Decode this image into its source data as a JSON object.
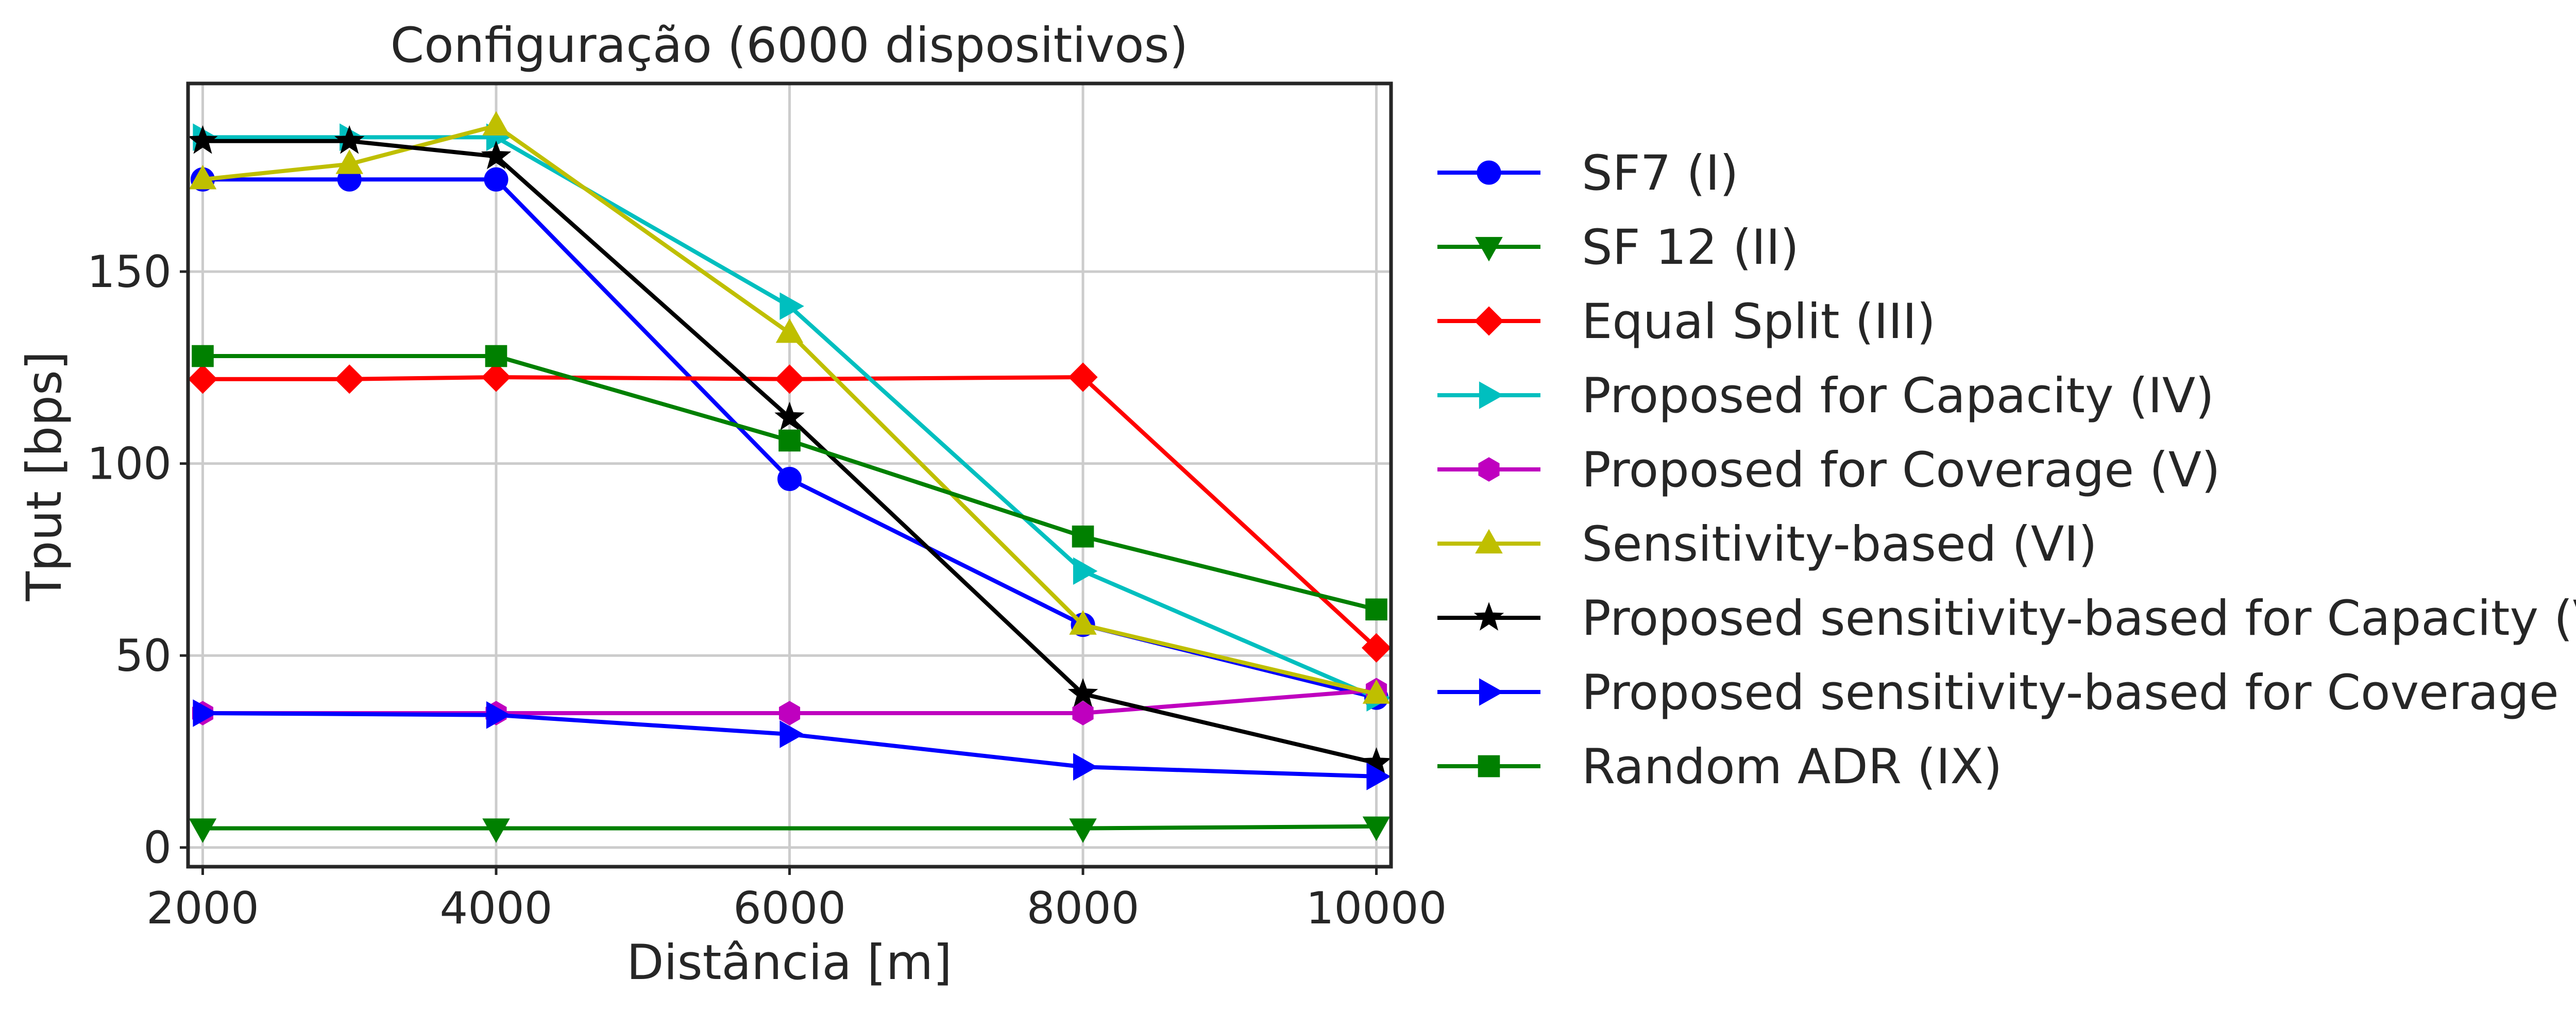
{
  "chart_data": {
    "type": "line",
    "title": "Configuração (6000 dispositivos)",
    "xlabel": "Distância [m]",
    "ylabel": "Tput [bps]",
    "xlim": [
      1900,
      10100
    ],
    "ylim": [
      -5,
      199
    ],
    "x_ticks": [
      2000,
      4000,
      6000,
      8000,
      10000
    ],
    "y_ticks": [
      0,
      50,
      100,
      150
    ],
    "x_tick_labels": [
      "2000",
      "4000",
      "6000",
      "8000",
      "10000"
    ],
    "y_tick_labels": [
      "0",
      "50",
      "100",
      "150"
    ],
    "grid": true,
    "legend_position": "outside-right",
    "series": [
      {
        "name": "SF7 (I)",
        "color": "#0000ff",
        "marker": "circle",
        "x": [
          2000,
          3000,
          4000,
          6000,
          8000,
          10000
        ],
        "y": [
          174,
          174,
          174,
          96,
          58,
          39
        ]
      },
      {
        "name": "SF 12 (II)",
        "color": "#008000",
        "marker": "triangle-down",
        "x": [
          2000,
          4000,
          8000,
          10000
        ],
        "y": [
          5,
          5,
          5,
          5.5
        ]
      },
      {
        "name": "Equal Split (III)",
        "color": "#ff0000",
        "marker": "diamond",
        "x": [
          2000,
          3000,
          4000,
          6000,
          8000,
          10000
        ],
        "y": [
          122,
          122,
          122.5,
          122,
          122.5,
          52
        ]
      },
      {
        "name": "Proposed for Capacity (IV)",
        "color": "#00bfbf",
        "marker": "triangle-right",
        "x": [
          2000,
          3000,
          4000,
          6000,
          8000,
          10000
        ],
        "y": [
          185,
          185,
          185,
          141,
          72,
          39
        ]
      },
      {
        "name": "Proposed for Coverage (V)",
        "color": "#bf00bf",
        "marker": "hexagon",
        "x": [
          2000,
          4000,
          6000,
          8000,
          10000
        ],
        "y": [
          35,
          35,
          35,
          35,
          41
        ]
      },
      {
        "name": "Sensitivity-based (VI)",
        "color": "#bfbf00",
        "marker": "triangle-up",
        "x": [
          2000,
          3000,
          4000,
          6000,
          8000,
          10000
        ],
        "y": [
          174,
          178,
          188,
          134,
          58,
          40
        ]
      },
      {
        "name": "Proposed sensitivity-based for Capacity (VII)",
        "color": "#000000",
        "marker": "star",
        "x": [
          2000,
          3000,
          4000,
          6000,
          8000,
          10000
        ],
        "y": [
          184,
          184,
          180,
          112,
          40,
          22
        ]
      },
      {
        "name": "Proposed sensitivity-based for Coverage (VIII)",
        "color": "#0000ff",
        "marker": "triangle-right",
        "x": [
          2000,
          4000,
          6000,
          8000,
          10000
        ],
        "y": [
          35,
          34.5,
          29.5,
          21,
          18.5
        ]
      },
      {
        "name": "Random ADR (IX)",
        "color": "#008000",
        "marker": "square",
        "x": [
          2000,
          4000,
          6000,
          8000,
          10000
        ],
        "y": [
          128,
          128,
          106,
          81,
          62
        ]
      }
    ]
  }
}
